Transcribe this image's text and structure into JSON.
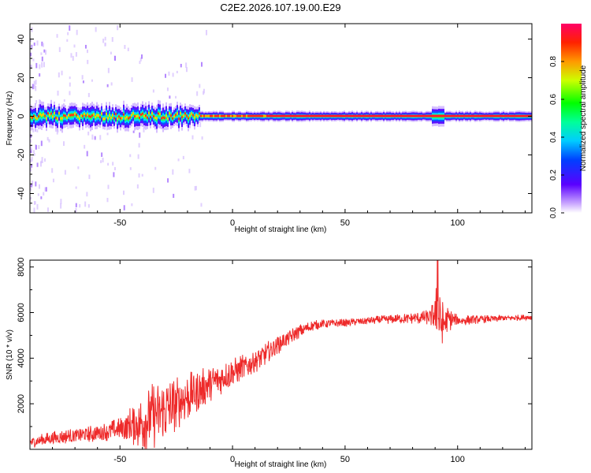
{
  "title": "C2E2.2026.107.19.00.E29",
  "colors": {
    "trace": "#ee2a2a",
    "frame": "#000000"
  },
  "chart_data": [
    {
      "type": "heatmap",
      "xlabel": "Height of straight line (km)",
      "ylabel": "Frequency (Hz)",
      "xlim": [
        -90,
        133
      ],
      "ylim": [
        -50,
        48
      ],
      "x_ticks": [
        -50,
        0,
        50,
        100
      ],
      "y_ticks": [
        -40,
        -20,
        0,
        20,
        40
      ],
      "x_tick_labels": [
        "-50",
        "0",
        "50",
        "100"
      ],
      "y_tick_labels": [
        "-40",
        "-20",
        "0",
        "20",
        "40"
      ],
      "colorbar": {
        "label": "Normalized spectral amplitude",
        "range": [
          0,
          1
        ],
        "ticks": [
          0.0,
          0.2,
          0.4,
          0.6,
          0.8
        ],
        "tick_labels": [
          "0.0",
          "0.2",
          "0.4",
          "0.6",
          "0.8"
        ]
      },
      "band": {
        "center_hz": 0,
        "noisy_until_km": -15,
        "spike_km": 91
      }
    },
    {
      "type": "line",
      "xlabel": "Height of straight line (km)",
      "ylabel": "SNR (10 * v/v)",
      "xlim": [
        -90,
        133
      ],
      "ylim": [
        0,
        8300
      ],
      "x_ticks": [
        -50,
        0,
        50,
        100
      ],
      "y_ticks": [
        2000,
        4000,
        6000,
        8000
      ],
      "x_tick_labels": [
        "-50",
        "0",
        "50",
        "100"
      ],
      "y_tick_labels": [
        "2000",
        "4000",
        "6000",
        "8000"
      ],
      "series": [
        {
          "name": "SNR",
          "x": [
            -90,
            -80,
            -70,
            -60,
            -50,
            -40,
            -35,
            -30,
            -25,
            -20,
            -15,
            -10,
            -5,
            0,
            5,
            10,
            15,
            20,
            25,
            30,
            35,
            40,
            50,
            60,
            70,
            80,
            88,
            91,
            93,
            95,
            100,
            110,
            120,
            133
          ],
          "values": [
            300,
            500,
            600,
            700,
            900,
            1200,
            1500,
            1700,
            2000,
            2300,
            2600,
            2900,
            3100,
            3350,
            3600,
            3900,
            4200,
            4600,
            4900,
            5200,
            5400,
            5500,
            5550,
            5650,
            5700,
            5750,
            5800,
            6000,
            5400,
            5700,
            5650,
            5700,
            5750,
            5800
          ],
          "noise": [
            250,
            300,
            350,
            400,
            500,
            1300,
            1500,
            1400,
            1200,
            1100,
            900,
            800,
            700,
            650,
            600,
            550,
            500,
            450,
            350,
            300,
            250,
            200,
            180,
            180,
            200,
            250,
            350,
            1400,
            1200,
            600,
            250,
            180,
            150,
            120
          ]
        }
      ]
    }
  ]
}
